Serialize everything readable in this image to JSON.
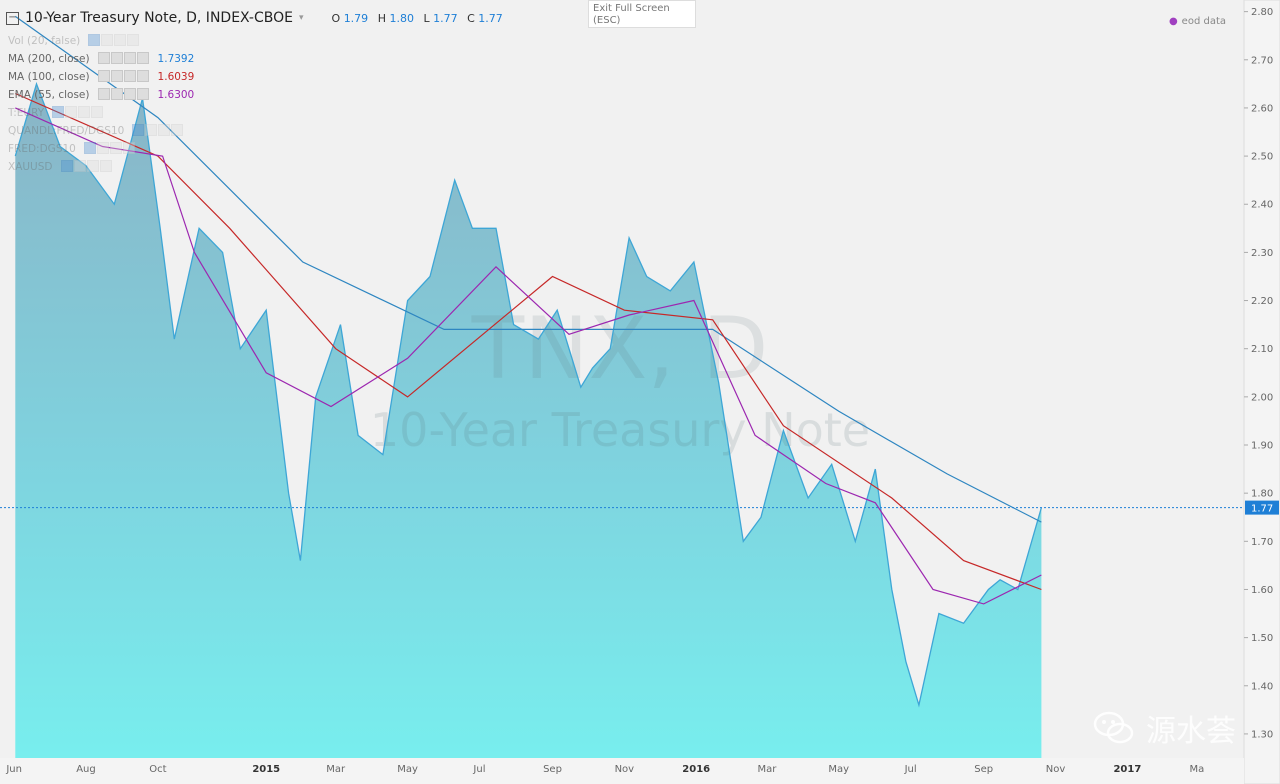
{
  "header": {
    "title": "10-Year Treasury Note, D, INDEX-CBOE",
    "o_label": "O",
    "o": "1.79",
    "h_label": "H",
    "h": "1.80",
    "l_label": "L",
    "l": "1.77",
    "c_label": "C",
    "c": "1.77"
  },
  "exit_fullscreen": {
    "line1": "Exit Full Screen",
    "line2": "(ESC)"
  },
  "eod_label": "eod data",
  "legend": [
    {
      "label": "Vol (20, false)",
      "value": "",
      "color": "#1e7fd6",
      "faded": true
    },
    {
      "label": "MA (200, close)",
      "value": "1.7392",
      "color": "#1e7fd6",
      "faded": false
    },
    {
      "label": "MA (100, close)",
      "value": "1.6039",
      "color": "#c62828",
      "faded": false
    },
    {
      "label": "EMA (55, close)",
      "value": "1.6300",
      "color": "#9c27b0",
      "faded": false
    },
    {
      "label": "T:EURY",
      "value": "",
      "color": "#1e7fd6",
      "faded": true
    },
    {
      "label": "QUANDL:FRED/DGS10",
      "value": "",
      "color": "#1e7fd6",
      "faded": true
    },
    {
      "label": "FRED:DGS10",
      "value": "",
      "color": "#1e7fd6",
      "faded": true
    },
    {
      "label": "XAUUSD",
      "value": "",
      "color": "#1e7fd6",
      "faded": true
    }
  ],
  "watermark_text": "源水荟",
  "chart_data": {
    "type": "area",
    "title": "10-Year Treasury Note, D, INDEX-CBOE",
    "center_watermark": {
      "symbol": "TNX, D",
      "name": "10-Year Treasury Note"
    },
    "y_ticks": [
      "2.80",
      "2.70",
      "2.60",
      "2.50",
      "2.40",
      "2.30",
      "2.20",
      "2.10",
      "2.00",
      "1.90",
      "1.80",
      "1.70",
      "1.60",
      "1.50",
      "1.40",
      "1.30"
    ],
    "ylim": [
      1.25,
      2.82
    ],
    "x_ticks": [
      "Jun",
      "Aug",
      "Oct",
      "2015",
      "Mar",
      "May",
      "Jul",
      "Sep",
      "Nov",
      "2016",
      "Mar",
      "May",
      "Jul",
      "Sep",
      "Nov",
      "2017",
      "Ma"
    ],
    "last_price": "1.77",
    "grid": false,
    "series": [
      {
        "name": "TNX",
        "style": "area",
        "color": "#3ea6d6",
        "x": [
          "2014-06-02",
          "2014-06-20",
          "2014-07-10",
          "2014-08-01",
          "2014-08-25",
          "2014-09-18",
          "2014-10-03",
          "2014-10-15",
          "2014-11-05",
          "2014-11-25",
          "2014-12-10",
          "2015-01-01",
          "2015-01-20",
          "2015-01-30",
          "2015-02-12",
          "2015-03-05",
          "2015-03-20",
          "2015-04-10",
          "2015-05-01",
          "2015-05-20",
          "2015-06-10",
          "2015-06-25",
          "2015-07-15",
          "2015-07-30",
          "2015-08-20",
          "2015-09-05",
          "2015-09-25",
          "2015-10-05",
          "2015-10-20",
          "2015-11-05",
          "2015-11-20",
          "2015-12-10",
          "2015-12-30",
          "2016-01-20",
          "2016-02-10",
          "2016-02-25",
          "2016-03-15",
          "2016-04-05",
          "2016-04-25",
          "2016-05-15",
          "2016-06-01",
          "2016-06-15",
          "2016-06-27",
          "2016-07-08",
          "2016-07-25",
          "2016-08-15",
          "2016-09-05",
          "2016-09-15",
          "2016-09-30",
          "2016-10-20"
        ],
        "values": [
          2.5,
          2.65,
          2.52,
          2.48,
          2.4,
          2.62,
          2.35,
          2.12,
          2.35,
          2.3,
          2.1,
          2.18,
          1.8,
          1.66,
          2.0,
          2.15,
          1.92,
          1.88,
          2.2,
          2.25,
          2.45,
          2.35,
          2.35,
          2.15,
          2.12,
          2.18,
          2.02,
          2.06,
          2.1,
          2.33,
          2.25,
          2.22,
          2.28,
          2.03,
          1.7,
          1.75,
          1.93,
          1.79,
          1.86,
          1.7,
          1.85,
          1.6,
          1.45,
          1.36,
          1.55,
          1.53,
          1.6,
          1.62,
          1.6,
          1.77
        ]
      },
      {
        "name": "MA (200, close)",
        "style": "line",
        "color": "#2e86c1",
        "x": [
          "2014-06-02",
          "2014-10-01",
          "2015-02-01",
          "2015-06-01",
          "2015-10-01",
          "2016-01-15",
          "2016-05-01",
          "2016-08-01",
          "2016-10-20"
        ],
        "values": [
          2.79,
          2.58,
          2.28,
          2.14,
          2.14,
          2.14,
          1.97,
          1.84,
          1.74
        ]
      },
      {
        "name": "MA (100, close)",
        "style": "line",
        "color": "#c62828",
        "x": [
          "2014-06-02",
          "2014-10-01",
          "2014-12-01",
          "2015-03-01",
          "2015-05-01",
          "2015-09-01",
          "2015-11-01",
          "2016-01-15",
          "2016-03-15",
          "2016-06-15",
          "2016-08-15",
          "2016-10-20"
        ],
        "values": [
          2.63,
          2.5,
          2.35,
          2.1,
          2.0,
          2.25,
          2.18,
          2.16,
          1.94,
          1.79,
          1.66,
          1.6
        ]
      },
      {
        "name": "EMA (55, close)",
        "style": "line",
        "color": "#9c27b0",
        "x": [
          "2014-06-02",
          "2014-08-15",
          "2014-10-05",
          "2014-11-01",
          "2015-01-01",
          "2015-02-25",
          "2015-05-01",
          "2015-07-15",
          "2015-09-15",
          "2015-11-05",
          "2015-12-30",
          "2016-02-20",
          "2016-04-20",
          "2016-06-01",
          "2016-07-20",
          "2016-09-01",
          "2016-10-20"
        ],
        "values": [
          2.6,
          2.52,
          2.5,
          2.3,
          2.05,
          1.98,
          2.08,
          2.27,
          2.13,
          2.17,
          2.2,
          1.92,
          1.82,
          1.78,
          1.6,
          1.57,
          1.63
        ]
      }
    ]
  }
}
